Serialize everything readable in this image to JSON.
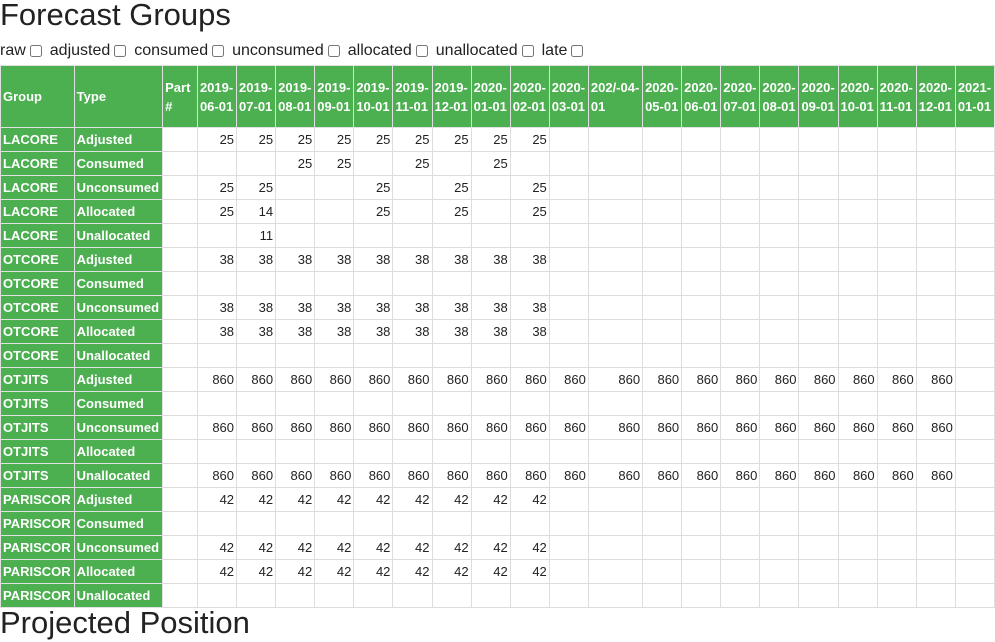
{
  "title": "Forecast Groups",
  "next_title": "Projected Position",
  "filters": [
    "raw",
    "adjusted",
    "consumed",
    "unconsumed",
    "allocated",
    "unallocated",
    "late"
  ],
  "headers": {
    "group": "Group",
    "type": "Type",
    "part": "Part #",
    "dates": [
      "2019-06-01",
      "2019-07-01",
      "2019-08-01",
      "2019-09-01",
      "2019-10-01",
      "2019-11-01",
      "2019-12-01",
      "2020-01-01",
      "2020-02-01",
      "2020-03-01",
      "202/-04-01",
      "2020-05-01",
      "2020-06-01",
      "2020-07-01",
      "2020-08-01",
      "2020-09-01",
      "2020-10-01",
      "2020-11-01",
      "2020-12-01",
      "2021-01-01"
    ]
  },
  "rows": [
    {
      "group": "LACORE",
      "type": "Adjusted",
      "part": "",
      "values": [
        "25",
        "25",
        "25",
        "25",
        "25",
        "25",
        "25",
        "25",
        "25",
        "",
        "",
        "",
        "",
        "",
        "",
        "",
        "",
        "",
        "",
        ""
      ]
    },
    {
      "group": "LACORE",
      "type": "Consumed",
      "part": "",
      "values": [
        "",
        "",
        "25",
        "25",
        "",
        "25",
        "",
        "25",
        "",
        "",
        "",
        "",
        "",
        "",
        "",
        "",
        "",
        "",
        "",
        ""
      ]
    },
    {
      "group": "LACORE",
      "type": "Unconsumed",
      "part": "",
      "values": [
        "25",
        "25",
        "",
        "",
        "25",
        "",
        "25",
        "",
        "25",
        "",
        "",
        "",
        "",
        "",
        "",
        "",
        "",
        "",
        "",
        ""
      ]
    },
    {
      "group": "LACORE",
      "type": "Allocated",
      "part": "",
      "values": [
        "25",
        "14",
        "",
        "",
        "25",
        "",
        "25",
        "",
        "25",
        "",
        "",
        "",
        "",
        "",
        "",
        "",
        "",
        "",
        "",
        ""
      ]
    },
    {
      "group": "LACORE",
      "type": "Unallocated",
      "part": "",
      "values": [
        "",
        "11",
        "",
        "",
        "",
        "",
        "",
        "",
        "",
        "",
        "",
        "",
        "",
        "",
        "",
        "",
        "",
        "",
        "",
        ""
      ]
    },
    {
      "group": "OTCORE",
      "type": "Adjusted",
      "part": "",
      "values": [
        "38",
        "38",
        "38",
        "38",
        "38",
        "38",
        "38",
        "38",
        "38",
        "",
        "",
        "",
        "",
        "",
        "",
        "",
        "",
        "",
        "",
        ""
      ]
    },
    {
      "group": "OTCORE",
      "type": "Consumed",
      "part": "",
      "values": [
        "",
        "",
        "",
        "",
        "",
        "",
        "",
        "",
        "",
        "",
        "",
        "",
        "",
        "",
        "",
        "",
        "",
        "",
        "",
        ""
      ]
    },
    {
      "group": "OTCORE",
      "type": "Unconsumed",
      "part": "",
      "values": [
        "38",
        "38",
        "38",
        "38",
        "38",
        "38",
        "38",
        "38",
        "38",
        "",
        "",
        "",
        "",
        "",
        "",
        "",
        "",
        "",
        "",
        ""
      ]
    },
    {
      "group": "OTCORE",
      "type": "Allocated",
      "part": "",
      "values": [
        "38",
        "38",
        "38",
        "38",
        "38",
        "38",
        "38",
        "38",
        "38",
        "",
        "",
        "",
        "",
        "",
        "",
        "",
        "",
        "",
        "",
        ""
      ]
    },
    {
      "group": "OTCORE",
      "type": "Unallocated",
      "part": "",
      "values": [
        "",
        "",
        "",
        "",
        "",
        "",
        "",
        "",
        "",
        "",
        "",
        "",
        "",
        "",
        "",
        "",
        "",
        "",
        "",
        ""
      ]
    },
    {
      "group": "OTJITS",
      "type": "Adjusted",
      "part": "",
      "values": [
        "860",
        "860",
        "860",
        "860",
        "860",
        "860",
        "860",
        "860",
        "860",
        "860",
        "860",
        "860",
        "860",
        "860",
        "860",
        "860",
        "860",
        "860",
        "860",
        ""
      ]
    },
    {
      "group": "OTJITS",
      "type": "Consumed",
      "part": "",
      "values": [
        "",
        "",
        "",
        "",
        "",
        "",
        "",
        "",
        "",
        "",
        "",
        "",
        "",
        "",
        "",
        "",
        "",
        "",
        "",
        ""
      ]
    },
    {
      "group": "OTJITS",
      "type": "Unconsumed",
      "part": "",
      "values": [
        "860",
        "860",
        "860",
        "860",
        "860",
        "860",
        "860",
        "860",
        "860",
        "860",
        "860",
        "860",
        "860",
        "860",
        "860",
        "860",
        "860",
        "860",
        "860",
        ""
      ]
    },
    {
      "group": "OTJITS",
      "type": "Allocated",
      "part": "",
      "values": [
        "",
        "",
        "",
        "",
        "",
        "",
        "",
        "",
        "",
        "",
        "",
        "",
        "",
        "",
        "",
        "",
        "",
        "",
        "",
        ""
      ]
    },
    {
      "group": "OTJITS",
      "type": "Unallocated",
      "part": "",
      "values": [
        "860",
        "860",
        "860",
        "860",
        "860",
        "860",
        "860",
        "860",
        "860",
        "860",
        "860",
        "860",
        "860",
        "860",
        "860",
        "860",
        "860",
        "860",
        "860",
        ""
      ]
    },
    {
      "group": "PARISCOR",
      "type": "Adjusted",
      "part": "",
      "values": [
        "42",
        "42",
        "42",
        "42",
        "42",
        "42",
        "42",
        "42",
        "42",
        "",
        "",
        "",
        "",
        "",
        "",
        "",
        "",
        "",
        "",
        ""
      ]
    },
    {
      "group": "PARISCOR",
      "type": "Consumed",
      "part": "",
      "values": [
        "",
        "",
        "",
        "",
        "",
        "",
        "",
        "",
        "",
        "",
        "",
        "",
        "",
        "",
        "",
        "",
        "",
        "",
        "",
        ""
      ]
    },
    {
      "group": "PARISCOR",
      "type": "Unconsumed",
      "part": "",
      "values": [
        "42",
        "42",
        "42",
        "42",
        "42",
        "42",
        "42",
        "42",
        "42",
        "",
        "",
        "",
        "",
        "",
        "",
        "",
        "",
        "",
        "",
        ""
      ]
    },
    {
      "group": "PARISCOR",
      "type": "Allocated",
      "part": "",
      "values": [
        "42",
        "42",
        "42",
        "42",
        "42",
        "42",
        "42",
        "42",
        "42",
        "",
        "",
        "",
        "",
        "",
        "",
        "",
        "",
        "",
        "",
        ""
      ]
    },
    {
      "group": "PARISCOR",
      "type": "Unallocated",
      "part": "",
      "values": [
        "",
        "",
        "",
        "",
        "",
        "",
        "",
        "",
        "",
        "",
        "",
        "",
        "",
        "",
        "",
        "",
        "",
        "",
        "",
        ""
      ]
    }
  ]
}
